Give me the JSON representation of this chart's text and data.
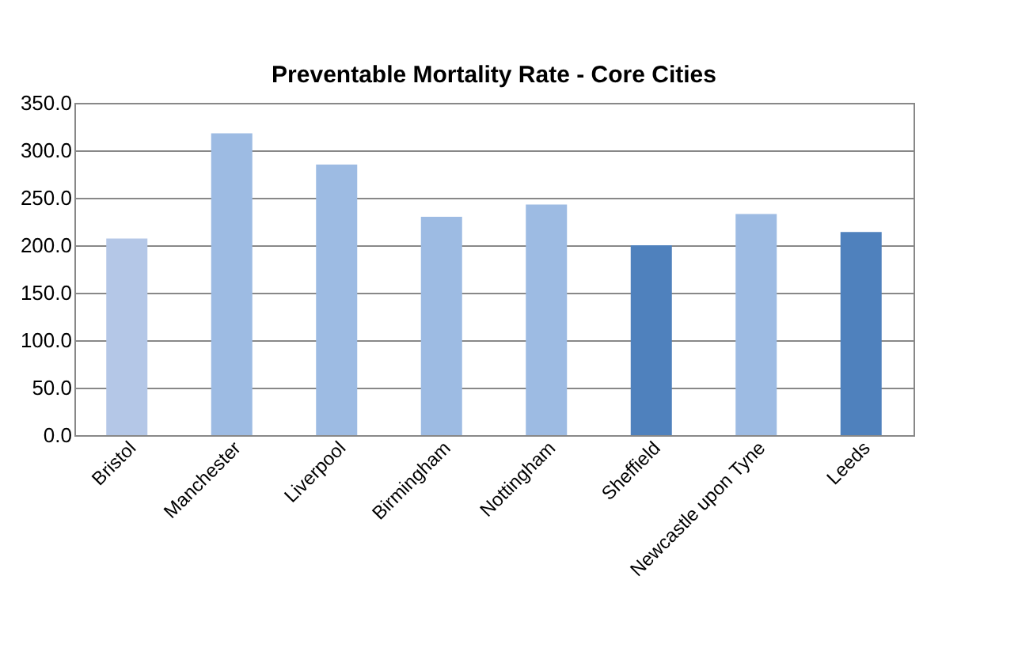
{
  "chart_data": {
    "type": "bar",
    "title": "Preventable Mortality Rate - Core Cities",
    "categories": [
      "Bristol",
      "Manchester",
      "Liverpool",
      "Birmingham",
      "Nottingham",
      "Sheffield",
      "Newcastle upon Tyne",
      "Leeds"
    ],
    "values": [
      207,
      318,
      285,
      230,
      243,
      200,
      233,
      214
    ],
    "colors": [
      "#b4c7e7",
      "#9dbbe3",
      "#9dbbe3",
      "#9dbbe3",
      "#9dbbe3",
      "#4f81bd",
      "#9dbbe3",
      "#4f81bd"
    ],
    "ylim": [
      0,
      350
    ],
    "yticks": [
      {
        "value": 0,
        "label": "0.0"
      },
      {
        "value": 50,
        "label": "50.0"
      },
      {
        "value": 100,
        "label": "100.0"
      },
      {
        "value": 150,
        "label": "150.0"
      },
      {
        "value": 200,
        "label": "200.0"
      },
      {
        "value": 250,
        "label": "250.0"
      },
      {
        "value": 300,
        "label": "300.0"
      },
      {
        "value": 350,
        "label": "350.0"
      }
    ],
    "grid": "y"
  }
}
